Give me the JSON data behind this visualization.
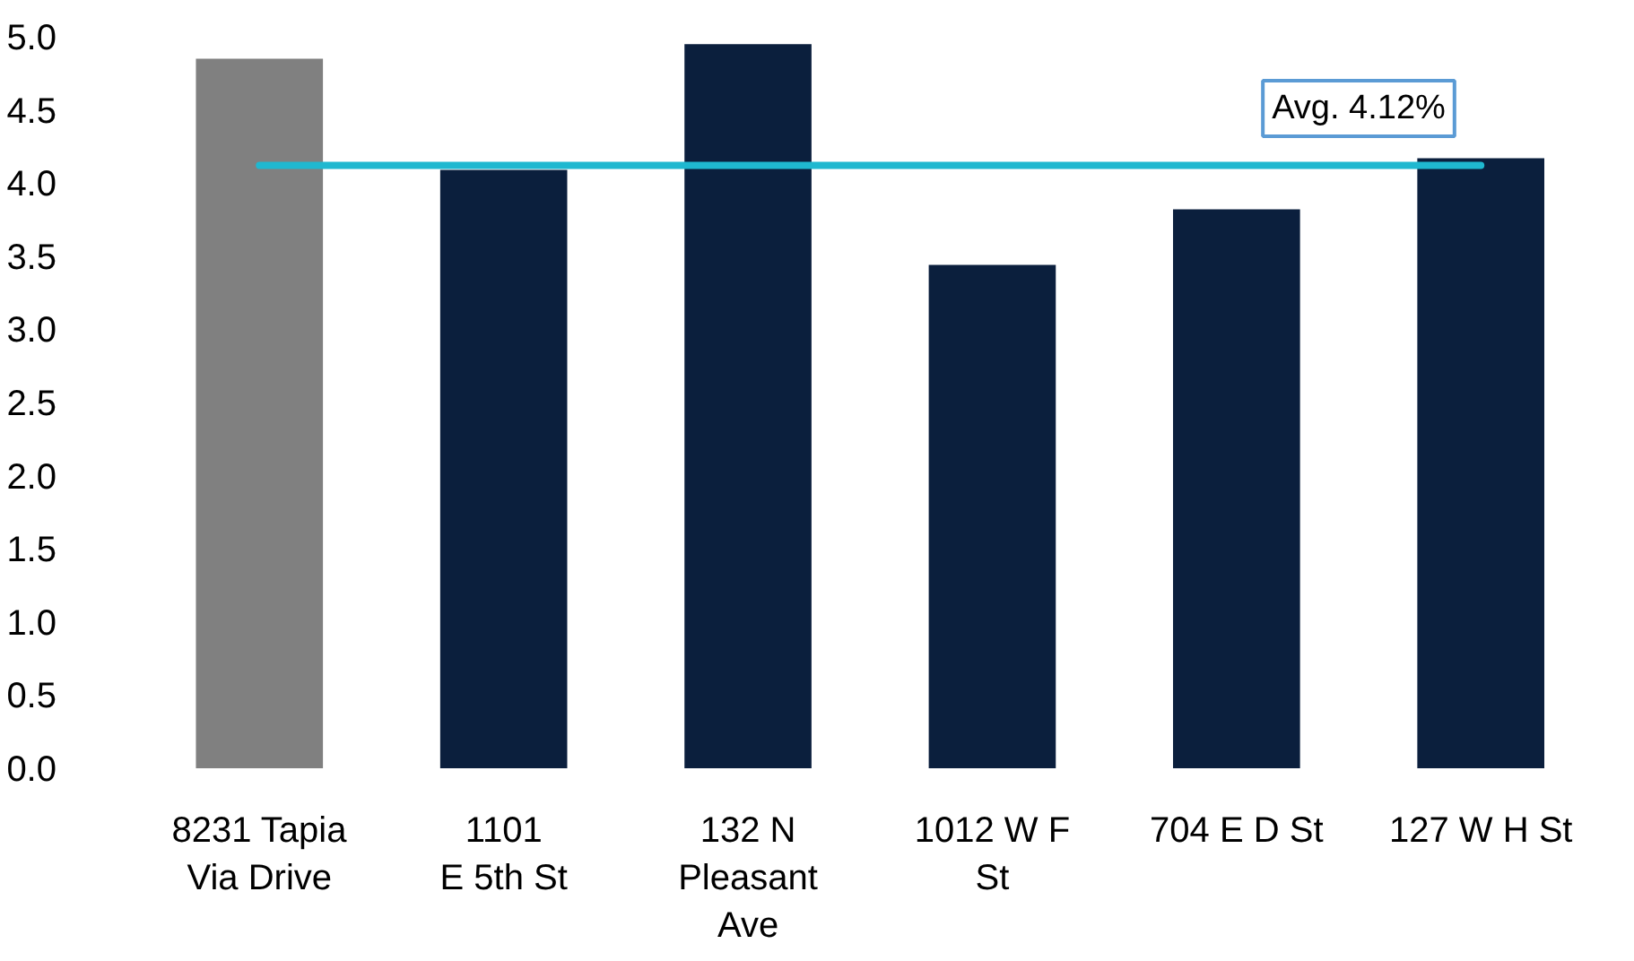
{
  "chart_data": {
    "type": "bar",
    "categories": [
      "8231 Tapia\nVia Drive",
      "1101\nE 5th St",
      "132 N\nPleasant\nAve",
      "1012 W F\nSt",
      "704 E D St",
      "127 W H St"
    ],
    "values": [
      4.85,
      4.09,
      4.95,
      3.44,
      3.82,
      4.17
    ],
    "colors": [
      "#808080",
      "#0b1f3d",
      "#0b1f3d",
      "#0b1f3d",
      "#0b1f3d",
      "#0b1f3d"
    ],
    "ylim": [
      0,
      5
    ],
    "yticks": [
      {
        "value": 0,
        "label": "0.0"
      },
      {
        "value": 0.5,
        "label": "0.5"
      },
      {
        "value": 1,
        "label": "1.0"
      },
      {
        "value": 1.5,
        "label": "1.5"
      },
      {
        "value": 2,
        "label": "2.0"
      },
      {
        "value": 2.5,
        "label": "2.5"
      },
      {
        "value": 3,
        "label": "3.0"
      },
      {
        "value": 3.5,
        "label": "3.5"
      },
      {
        "value": 4,
        "label": "4.0"
      },
      {
        "value": 4.5,
        "label": "4.5"
      },
      {
        "value": 5,
        "label": "5.0"
      }
    ],
    "ref_lines": [
      {
        "axis": "y",
        "value": 4.12,
        "label": "Avg. 4.12%",
        "color": "#1fb8d0"
      }
    ],
    "grid": false
  }
}
